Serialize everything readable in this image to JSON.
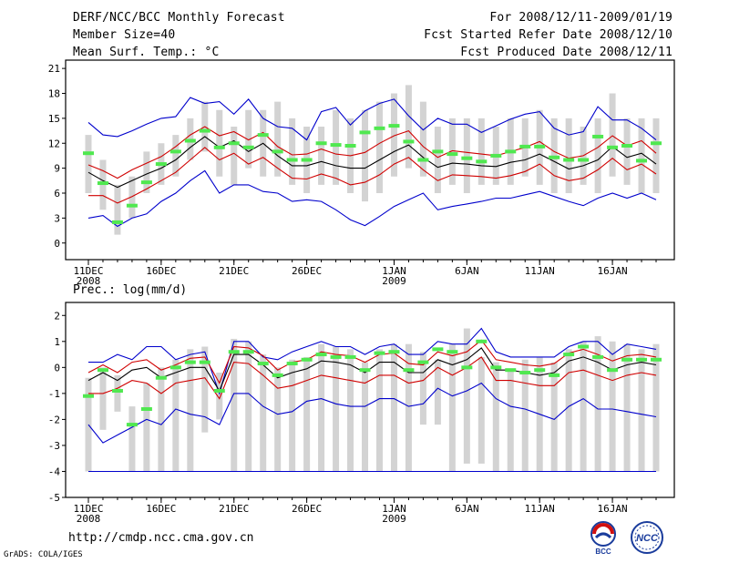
{
  "header": {
    "title": "DERF/NCC/BCC Monthly Forecast",
    "member_size": "Member Size=40",
    "variable": "Mean Surf. Temp.: °C",
    "period": "For 2008/12/11-2009/01/19",
    "start_date": "Fcst Started Refer Date 2008/12/10",
    "produced_date": "Fcst Produced Date 2008/12/11"
  },
  "footer": {
    "url": "http://cmdp.ncc.cma.gov.cn",
    "credit": "GrADS: COLA/IGES"
  },
  "logos": {
    "bcc_text": "BCC",
    "ncc_text": "NCC"
  },
  "colors": {
    "box": "#d3d3d3",
    "observed_mark": "#50e850",
    "median": "#000000",
    "spread": "#d00000",
    "extreme": "#0000cc"
  },
  "chart_data": [
    {
      "type": "box",
      "title": "Mean Surf. Temp.: °C",
      "ylabel": "°C",
      "ylim": [
        -2,
        22
      ],
      "yticks": [
        0,
        3,
        6,
        9,
        12,
        15,
        18,
        21
      ],
      "x_tick_labels": [
        {
          "day": 1,
          "label": "11DEC",
          "sub": "2008"
        },
        {
          "day": 6,
          "label": "16DEC",
          "sub": ""
        },
        {
          "day": 11,
          "label": "21DEC",
          "sub": ""
        },
        {
          "day": 16,
          "label": "26DEC",
          "sub": ""
        },
        {
          "day": 22,
          "label": "1JAN",
          "sub": "2009"
        },
        {
          "day": 27,
          "label": "6JAN",
          "sub": ""
        },
        {
          "day": 32,
          "label": "11JAN",
          "sub": ""
        },
        {
          "day": 37,
          "label": "16JAN",
          "sub": ""
        }
      ],
      "x_range": [
        1,
        40
      ],
      "days": [
        1,
        2,
        3,
        4,
        5,
        6,
        7,
        8,
        9,
        10,
        11,
        12,
        13,
        14,
        15,
        16,
        17,
        18,
        19,
        20,
        21,
        22,
        23,
        24,
        25,
        26,
        27,
        28,
        29,
        30,
        31,
        32,
        33,
        34,
        35,
        36,
        37,
        38,
        39,
        40
      ],
      "box_low": [
        6,
        4,
        1,
        3,
        6,
        7,
        8,
        10,
        11,
        8,
        7,
        9,
        8,
        8,
        7,
        6,
        7,
        7,
        6,
        5,
        6,
        8,
        9,
        8,
        6,
        7,
        6,
        7,
        7,
        7,
        8,
        7,
        6,
        6,
        7,
        6,
        8,
        7,
        6,
        6
      ],
      "box_high": [
        13,
        10,
        7,
        8,
        11,
        12,
        13,
        15,
        17,
        16,
        14,
        16,
        16,
        17,
        15,
        14,
        14,
        16,
        15,
        16,
        17,
        18,
        19,
        17,
        14,
        15,
        15,
        15,
        14,
        15,
        15,
        16,
        15,
        15,
        14,
        15,
        18,
        15,
        15,
        15
      ],
      "observed": [
        10.8,
        7.2,
        2.5,
        4.5,
        7.3,
        9.5,
        11,
        12.3,
        13.5,
        11.5,
        12,
        11.5,
        13,
        11,
        10,
        10,
        12,
        11.8,
        11.7,
        13.3,
        13.8,
        14.1,
        12.2,
        10,
        11,
        10.7,
        10.2,
        9.8,
        10.5,
        11,
        11.6,
        11.6,
        10.3,
        10,
        10,
        12.8,
        11.5,
        11.7,
        9.9,
        12
      ],
      "median": [
        8.5,
        7.5,
        6.7,
        7.5,
        8.3,
        9,
        10,
        11.5,
        12.8,
        11.5,
        12.3,
        11,
        12,
        10.5,
        9.3,
        9.3,
        9.8,
        9.3,
        9,
        9,
        10,
        11,
        11.8,
        10.3,
        9.1,
        9.6,
        9.5,
        9.3,
        9.2,
        9.7,
        10,
        10.7,
        9.8,
        8.9,
        9.3,
        10,
        11.6,
        10.3,
        10.8,
        9.5
      ],
      "spread_low": [
        5.7,
        5.7,
        4.8,
        5.6,
        6.5,
        7.5,
        8.5,
        10,
        11.5,
        10,
        10.8,
        9.5,
        10.3,
        9,
        7.8,
        7.7,
        8.3,
        7.8,
        7,
        7.3,
        8.2,
        9.5,
        10.3,
        8.8,
        7.5,
        8.2,
        8.1,
        8,
        7.8,
        8.1,
        8.6,
        9.5,
        8.1,
        7.5,
        7.8,
        8.8,
        10.2,
        8.8,
        9.5,
        8.3
      ],
      "spread_high": [
        9.4,
        8.7,
        7.8,
        8.8,
        9.6,
        10.4,
        11.6,
        13,
        14,
        12.9,
        13.4,
        12.4,
        13.3,
        11.6,
        10.6,
        10.7,
        11.3,
        10.7,
        10.5,
        10.9,
        12,
        12.9,
        13.5,
        11.6,
        10.3,
        11.1,
        10.9,
        10.7,
        10.5,
        11,
        11.5,
        12.2,
        11,
        10.2,
        10.5,
        11.5,
        12.9,
        11.7,
        12.3,
        10.8
      ],
      "max": [
        14.5,
        13,
        12.8,
        13.5,
        14.3,
        15,
        15.2,
        17.5,
        16.8,
        17,
        15.5,
        17.3,
        15,
        14,
        13.8,
        12.4,
        15.8,
        16.3,
        14.2,
        15.9,
        16.8,
        17.3,
        15.3,
        13.6,
        15,
        14.3,
        14.3,
        13.3,
        14.1,
        14.9,
        15.5,
        15.8,
        13.8,
        13,
        13.4,
        16.4,
        14.8,
        14.8,
        13.8,
        12.4
      ],
      "min": [
        3,
        3.3,
        2,
        3,
        3.5,
        5,
        6,
        7.5,
        8.7,
        6,
        7,
        7,
        6.2,
        6,
        5,
        5.2,
        5,
        4,
        2.8,
        2.1,
        3.2,
        4.4,
        5.2,
        6,
        4,
        4.4,
        4.7,
        5,
        5.4,
        5.4,
        5.8,
        6.2,
        5.6,
        5,
        4.5,
        5.4,
        6,
        5.4,
        6,
        5.2
      ]
    },
    {
      "type": "box",
      "title": "Prec.: log(mm/d)",
      "ylabel": "log(mm/d)",
      "ylim": [
        -5,
        2.5
      ],
      "yticks": [
        -5,
        -4,
        -3,
        -2,
        -1,
        0,
        1,
        2
      ],
      "x_tick_labels": [
        {
          "day": 1,
          "label": "11DEC",
          "sub": "2008"
        },
        {
          "day": 6,
          "label": "16DEC",
          "sub": ""
        },
        {
          "day": 11,
          "label": "21DEC",
          "sub": ""
        },
        {
          "day": 16,
          "label": "26DEC",
          "sub": ""
        },
        {
          "day": 22,
          "label": "1JAN",
          "sub": "2009"
        },
        {
          "day": 27,
          "label": "6JAN",
          "sub": ""
        },
        {
          "day": 32,
          "label": "11JAN",
          "sub": ""
        },
        {
          "day": 37,
          "label": "16JAN",
          "sub": ""
        }
      ],
      "x_range": [
        1,
        40
      ],
      "days": [
        1,
        2,
        3,
        4,
        5,
        6,
        7,
        8,
        9,
        10,
        11,
        12,
        13,
        14,
        15,
        16,
        17,
        18,
        19,
        20,
        21,
        22,
        23,
        24,
        25,
        26,
        27,
        28,
        29,
        30,
        31,
        32,
        33,
        34,
        35,
        36,
        37,
        38,
        39,
        40
      ],
      "floor": -4,
      "box_low": [
        -4,
        -2.4,
        -1.7,
        -4,
        -4,
        -4,
        -4,
        -4,
        -2.5,
        -2,
        -4,
        -4,
        -4,
        -4,
        -4,
        -4,
        -4,
        -4,
        -4,
        -4,
        -4,
        -4,
        -4,
        -2.2,
        -2.2,
        -4,
        -3.7,
        -3.7,
        -4,
        -4,
        -4,
        -4,
        -4,
        -4,
        -4,
        -4,
        -4,
        -4,
        -4,
        -4
      ],
      "box_high": [
        -0.4,
        0,
        -0.3,
        -1.5,
        -0.6,
        0,
        0.3,
        0.7,
        0.8,
        -0.2,
        1.1,
        1,
        0.5,
        0,
        0.3,
        0.4,
        0.9,
        0.8,
        0.7,
        0.2,
        0.7,
        0.9,
        0.9,
        0.6,
        0.3,
        0.9,
        1.5,
        0.4,
        0.2,
        -0.1,
        0.3,
        0.4,
        0.2,
        0.7,
        1,
        1.2,
        1,
        0.9,
        0.7,
        0.9
      ],
      "observed": [
        -1.1,
        -0.1,
        -0.9,
        -2.2,
        -1.6,
        -0.4,
        0,
        0.2,
        0.2,
        -0.9,
        0.6,
        0.6,
        0.15,
        -0.3,
        0.15,
        0.3,
        0.5,
        0.4,
        0.4,
        -0.1,
        0.55,
        0.6,
        -0.1,
        0.2,
        0.7,
        0.6,
        0,
        1,
        0,
        -0.1,
        -0.2,
        -0.1,
        -0.3,
        0.5,
        0.8,
        0.4,
        -0.1,
        0.3,
        0.3,
        0.3
      ],
      "median": [
        -0.5,
        -0.2,
        -0.5,
        -0.1,
        0,
        -0.4,
        -0.2,
        0,
        0,
        -0.9,
        0.5,
        0.5,
        0.1,
        -0.4,
        -0.2,
        -0.05,
        0.25,
        0.2,
        0.1,
        -0.2,
        0.2,
        0.2,
        -0.2,
        -0.2,
        0.3,
        0.1,
        0.3,
        0.75,
        -0.1,
        -0.1,
        -0.2,
        -0.3,
        -0.2,
        0.25,
        0.4,
        0.2,
        -0.1,
        0.1,
        0.2,
        0.1
      ],
      "spread_low": [
        -1,
        -1,
        -0.8,
        -0.5,
        -0.6,
        -1,
        -0.6,
        -0.5,
        -0.4,
        -1.2,
        0.2,
        0.15,
        -0.3,
        -0.8,
        -0.7,
        -0.5,
        -0.3,
        -0.4,
        -0.5,
        -0.6,
        -0.3,
        -0.3,
        -0.6,
        -0.5,
        0,
        -0.3,
        0,
        0.4,
        -0.5,
        -0.5,
        -0.6,
        -0.7,
        -0.7,
        -0.2,
        -0.1,
        -0.3,
        -0.5,
        -0.3,
        -0.2,
        -0.3
      ],
      "spread_high": [
        -0.2,
        0.1,
        -0.2,
        0.2,
        0.3,
        -0.1,
        0.1,
        0.35,
        0.4,
        -0.6,
        0.8,
        0.75,
        0.45,
        -0.1,
        0.2,
        0.3,
        0.6,
        0.5,
        0.45,
        0.2,
        0.5,
        0.55,
        0.15,
        0.1,
        0.6,
        0.45,
        0.6,
        1.05,
        0.3,
        0.2,
        0.1,
        0.05,
        0.15,
        0.55,
        0.7,
        0.5,
        0.25,
        0.45,
        0.5,
        0.4
      ],
      "max": [
        0.2,
        0.2,
        0.5,
        0.3,
        0.8,
        0.8,
        0.3,
        0.5,
        0.6,
        -1,
        1,
        1,
        0.4,
        0.3,
        0.6,
        0.8,
        1,
        0.8,
        0.8,
        0.5,
        0.8,
        0.9,
        0.5,
        0.5,
        1,
        0.9,
        0.9,
        1.5,
        0.6,
        0.4,
        0.4,
        0.4,
        0.4,
        0.8,
        1,
        1,
        0.5,
        0.9,
        0.8,
        0.7
      ],
      "min": [
        -2.2,
        -2.9,
        -2.6,
        -2.3,
        -2,
        -2.2,
        -1.6,
        -1.8,
        -1.9,
        -2.2,
        -1,
        -1,
        -1.5,
        -1.8,
        -1.7,
        -1.3,
        -1.2,
        -1.4,
        -1.5,
        -1.5,
        -1.2,
        -1.2,
        -1.5,
        -1.4,
        -0.8,
        -1.1,
        -0.9,
        -0.6,
        -1.2,
        -1.5,
        -1.6,
        -1.8,
        -2,
        -1.5,
        -1.2,
        -1.6,
        -1.6,
        -1.7,
        -1.8,
        -1.9
      ]
    }
  ]
}
